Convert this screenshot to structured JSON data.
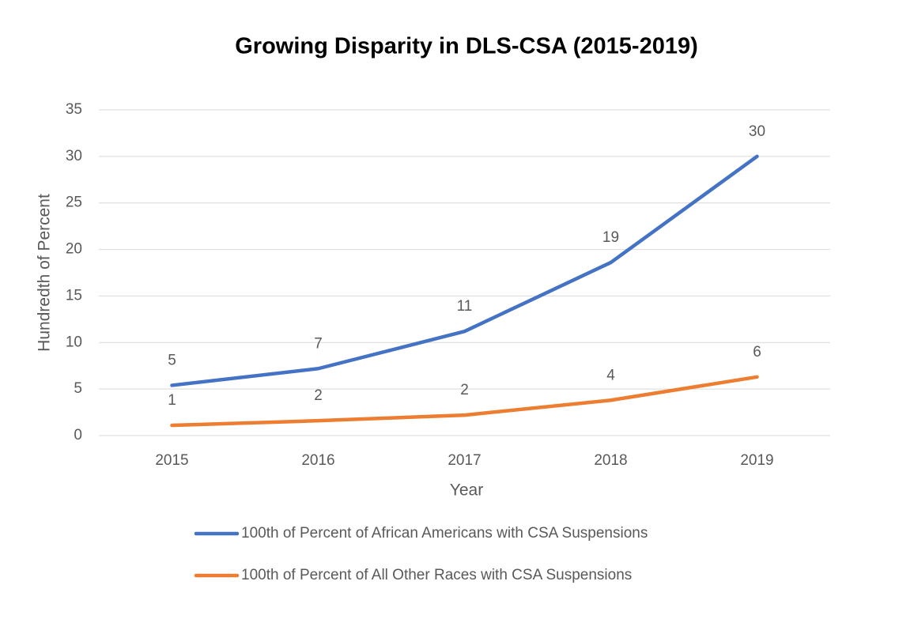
{
  "chart_data": {
    "type": "line",
    "title": "Growing Disparity in DLS-CSA (2015-2019)",
    "x_label": "Year",
    "y_label": "Hundredth of Percent",
    "categories": [
      "2015",
      "2016",
      "2017",
      "2018",
      "2019"
    ],
    "series": [
      {
        "name": "100th of Percent of African Americans with CSA Suspensions",
        "color": "#4472c4",
        "values": [
          5.4,
          7.2,
          11.2,
          18.6,
          30
        ],
        "value_labels": [
          "5",
          "7",
          "11",
          "19",
          "30"
        ]
      },
      {
        "name": "100th of Percent of All Other Races with CSA Suspensions",
        "color": "#ed7d31",
        "values": [
          1.1,
          1.6,
          2.2,
          3.8,
          6.3
        ],
        "value_labels": [
          "1",
          "2",
          "2",
          "4",
          "6"
        ]
      }
    ],
    "ylim": [
      0,
      35
    ],
    "yticks": [
      0,
      5,
      10,
      15,
      20,
      25,
      30,
      35
    ],
    "grid": true,
    "legend": "bottom"
  }
}
